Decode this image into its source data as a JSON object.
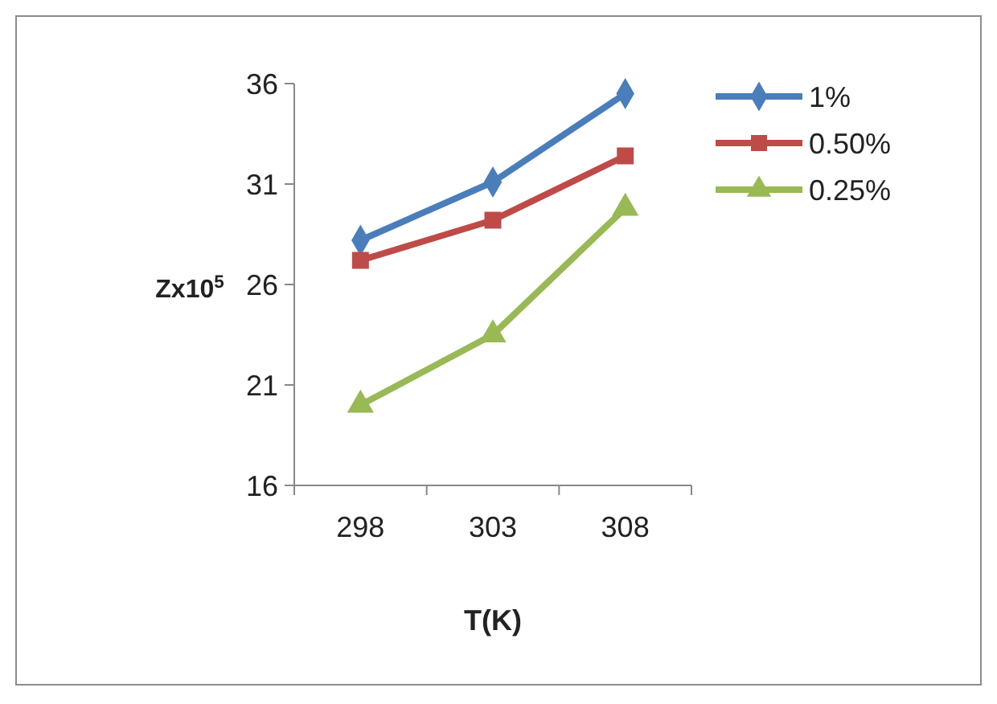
{
  "chart_data": {
    "type": "line",
    "xlabel": "T(K)",
    "ylabel": "Zx10$^{5}$",
    "categories": [
      "298",
      "303",
      "308"
    ],
    "ylim": [
      16,
      36
    ],
    "yticks": [
      16,
      21,
      26,
      31,
      36
    ],
    "grid": false,
    "legend": "top right",
    "series": [
      {
        "name": "1%",
        "color": "#4a7ebb",
        "marker": "diamond",
        "values": [
          28.2,
          31.1,
          35.5
        ]
      },
      {
        "name": "0.50%",
        "color": "#be4b48",
        "marker": "square",
        "values": [
          27.2,
          29.2,
          32.4
        ]
      },
      {
        "name": "0.25%",
        "color": "#98b954",
        "marker": "triangle",
        "values": [
          20.0,
          23.5,
          29.8
        ]
      }
    ]
  }
}
